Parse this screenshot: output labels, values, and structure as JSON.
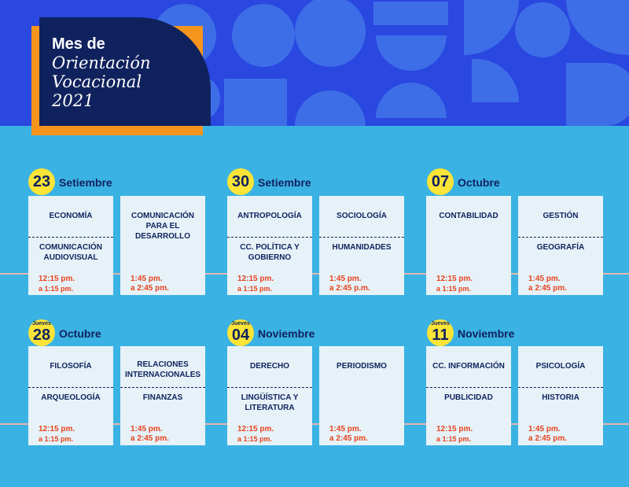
{
  "header": {
    "title_line1": "Mes de",
    "title_line2": "Orientación",
    "title_line3": "Vocacional",
    "title_line4": "2021"
  },
  "colors": {
    "banner": "#2a47e0",
    "background": "#3ab2e3",
    "accent": "#f7941d",
    "navy": "#10225e",
    "yellow": "#fbe437",
    "time": "#e8421e"
  },
  "dates": [
    {
      "day": "23",
      "month": "Setiembre",
      "jueves": ""
    },
    {
      "day": "30",
      "month": "Setiembre",
      "jueves": ""
    },
    {
      "day": "07",
      "month": "Octubre",
      "jueves": ""
    },
    {
      "day": "28",
      "month": "Octubre",
      "jueves": "Jueves"
    },
    {
      "day": "04",
      "month": "Noviembre",
      "jueves": "Jueves"
    },
    {
      "day": "11",
      "month": "Noviembre",
      "jueves": "Jueves"
    }
  ],
  "cards": [
    {
      "top": "ECONOMÍA",
      "bottom": "COMUNICACIÓN AUDIOVISUAL",
      "time1": "12:15 pm.",
      "time2": "a 1:15 pm."
    },
    {
      "top": "COMUNICACIÓN PARA EL DESARROLLO",
      "bottom": "",
      "time1": "1:45 pm.",
      "time2": "a 2:45 pm."
    },
    {
      "top": "ANTROPOLOGÍA",
      "bottom": "CC. POLÍTICA Y GOBIERNO",
      "time1": "12:15 pm.",
      "time2": "a 1:15 pm."
    },
    {
      "top": "SOCIOLOGÍA",
      "bottom": "HUMANIDADES",
      "time1": "1:45 pm.",
      "time2": "a 2:45 p.m."
    },
    {
      "top": "CONTABILIDAD",
      "bottom": "",
      "time1": "12:15 pm.",
      "time2": "a 1:15 pm."
    },
    {
      "top": "GESTIÓN",
      "bottom": "GEOGRAFÍA",
      "time1": "1:45 pm.",
      "time2": "a 2:45 pm."
    },
    {
      "top": "FILOSOFÍA",
      "bottom": "ARQUEOLOGÍA",
      "time1": "12:15 pm.",
      "time2": "a 1:15 pm."
    },
    {
      "top": "RELACIONES INTERNACIONALES",
      "bottom": "FINANZAS",
      "time1": "1:45 pm.",
      "time2": "a 2:45 pm."
    },
    {
      "top": "DERECHO",
      "bottom": "LINGÜÍSTICA Y LITERATURA",
      "time1": "12:15 pm.",
      "time2": "a 1:15 pm."
    },
    {
      "top": "PERIODISMO",
      "bottom": "",
      "time1": "1:45 pm.",
      "time2": "a 2:45 pm."
    },
    {
      "top": "CC. INFORMACIÓN",
      "bottom": "PUBLICIDAD",
      "time1": "12:15 pm.",
      "time2": "a 1:15 pm."
    },
    {
      "top": "PSICOLOGÍA",
      "bottom": "HISTORIA",
      "time1": "1:45 pm.",
      "time2": "a 2:45 pm."
    }
  ]
}
